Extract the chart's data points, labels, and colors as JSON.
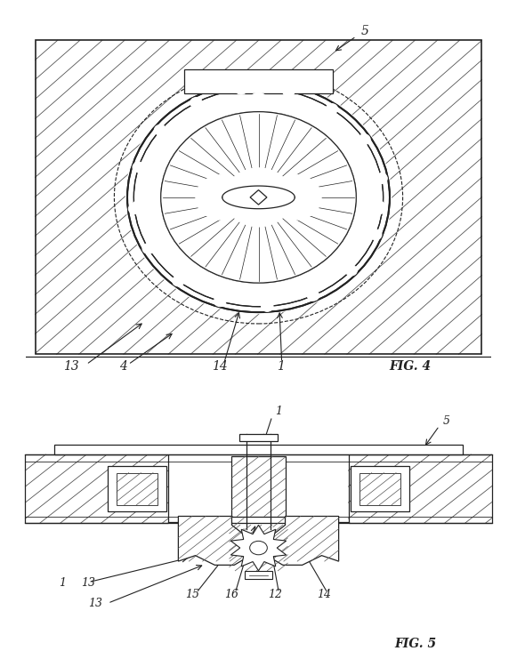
{
  "line_color": "#222222",
  "hatch_color": "#555555",
  "fig_width": 5.81,
  "fig_height": 7.5,
  "dpi": 100
}
